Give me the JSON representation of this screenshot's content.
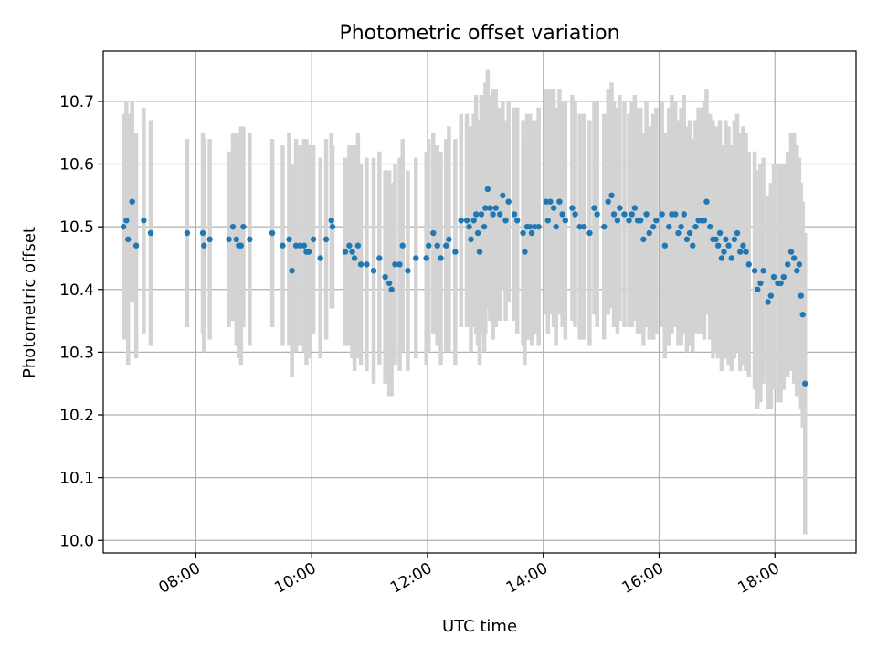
{
  "chart_data": {
    "type": "scatter",
    "title": "Photometric offset variation",
    "xlabel": "UTC time",
    "ylabel": "Photometric offset",
    "x_unit": "UTC hours",
    "xlim": [
      6.4,
      19.4
    ],
    "ylim": [
      9.98,
      10.78
    ],
    "grid": true,
    "x_ticks": [
      {
        "value": 8,
        "label": "08:00"
      },
      {
        "value": 10,
        "label": "10:00"
      },
      {
        "value": 12,
        "label": "12:00"
      },
      {
        "value": 14,
        "label": "14:00"
      },
      {
        "value": 16,
        "label": "16:00"
      },
      {
        "value": 18,
        "label": "18:00"
      }
    ],
    "y_ticks": [
      {
        "value": 10.0,
        "label": "10.0"
      },
      {
        "value": 10.1,
        "label": "10.1"
      },
      {
        "value": 10.2,
        "label": "10.2"
      },
      {
        "value": 10.3,
        "label": "10.3"
      },
      {
        "value": 10.4,
        "label": "10.4"
      },
      {
        "value": 10.5,
        "label": "10.5"
      },
      {
        "value": 10.6,
        "label": "10.6"
      },
      {
        "value": 10.7,
        "label": "10.7"
      }
    ],
    "colors": {
      "points": "#1f77b4",
      "error_bars": "#d3d3d3"
    },
    "points": [
      [
        6.75,
        10.5,
        0.18
      ],
      [
        6.8,
        10.51,
        0.19
      ],
      [
        6.83,
        10.48,
        0.2
      ],
      [
        6.9,
        10.54,
        0.16
      ],
      [
        6.97,
        10.47,
        0.18
      ],
      [
        7.1,
        10.51,
        0.18
      ],
      [
        7.22,
        10.49,
        0.18
      ],
      [
        7.85,
        10.49,
        0.15
      ],
      [
        8.12,
        10.49,
        0.16
      ],
      [
        8.14,
        10.47,
        0.17
      ],
      [
        8.24,
        10.48,
        0.16
      ],
      [
        8.57,
        10.48,
        0.14
      ],
      [
        8.64,
        10.5,
        0.15
      ],
      [
        8.7,
        10.48,
        0.17
      ],
      [
        8.74,
        10.47,
        0.18
      ],
      [
        8.78,
        10.47,
        0.19
      ],
      [
        8.82,
        10.5,
        0.16
      ],
      [
        8.93,
        10.48,
        0.17
      ],
      [
        9.32,
        10.49,
        0.15
      ],
      [
        9.5,
        10.47,
        0.16
      ],
      [
        9.61,
        10.48,
        0.17
      ],
      [
        9.66,
        10.43,
        0.17
      ],
      [
        9.73,
        10.47,
        0.17
      ],
      [
        9.8,
        10.47,
        0.16
      ],
      [
        9.87,
        10.47,
        0.17
      ],
      [
        9.91,
        10.46,
        0.18
      ],
      [
        9.95,
        10.46,
        0.17
      ],
      [
        10.03,
        10.48,
        0.15
      ],
      [
        10.15,
        10.45,
        0.16
      ],
      [
        10.25,
        10.48,
        0.16
      ],
      [
        10.34,
        10.51,
        0.14
      ],
      [
        10.36,
        10.5,
        0.13
      ],
      [
        10.58,
        10.46,
        0.15
      ],
      [
        10.65,
        10.47,
        0.16
      ],
      [
        10.7,
        10.46,
        0.17
      ],
      [
        10.74,
        10.45,
        0.18
      ],
      [
        10.8,
        10.47,
        0.18
      ],
      [
        10.85,
        10.44,
        0.16
      ],
      [
        10.95,
        10.44,
        0.17
      ],
      [
        11.07,
        10.43,
        0.18
      ],
      [
        11.17,
        10.45,
        0.17
      ],
      [
        11.27,
        10.42,
        0.17
      ],
      [
        11.34,
        10.41,
        0.18
      ],
      [
        11.38,
        10.4,
        0.17
      ],
      [
        11.44,
        10.44,
        0.16
      ],
      [
        11.52,
        10.44,
        0.17
      ],
      [
        11.57,
        10.47,
        0.17
      ],
      [
        11.66,
        10.43,
        0.16
      ],
      [
        11.8,
        10.45,
        0.16
      ],
      [
        11.98,
        10.45,
        0.17
      ],
      [
        12.02,
        10.47,
        0.17
      ],
      [
        12.1,
        10.49,
        0.16
      ],
      [
        12.17,
        10.47,
        0.16
      ],
      [
        12.23,
        10.45,
        0.17
      ],
      [
        12.32,
        10.47,
        0.17
      ],
      [
        12.37,
        10.48,
        0.18
      ],
      [
        12.48,
        10.46,
        0.18
      ],
      [
        12.58,
        10.51,
        0.17
      ],
      [
        12.68,
        10.51,
        0.17
      ],
      [
        12.72,
        10.5,
        0.16
      ],
      [
        12.75,
        10.48,
        0.18
      ],
      [
        12.8,
        10.51,
        0.17
      ],
      [
        12.84,
        10.52,
        0.19
      ],
      [
        12.87,
        10.49,
        0.18
      ],
      [
        12.9,
        10.46,
        0.18
      ],
      [
        12.93,
        10.52,
        0.19
      ],
      [
        12.98,
        10.5,
        0.2
      ],
      [
        13.0,
        10.53,
        0.2
      ],
      [
        13.04,
        10.56,
        0.19
      ],
      [
        13.08,
        10.53,
        0.18
      ],
      [
        13.13,
        10.52,
        0.2
      ],
      [
        13.18,
        10.53,
        0.19
      ],
      [
        13.25,
        10.52,
        0.17
      ],
      [
        13.3,
        10.55,
        0.15
      ],
      [
        13.35,
        10.51,
        0.16
      ],
      [
        13.4,
        10.54,
        0.16
      ],
      [
        13.5,
        10.52,
        0.17
      ],
      [
        13.55,
        10.51,
        0.18
      ],
      [
        13.65,
        10.49,
        0.18
      ],
      [
        13.68,
        10.46,
        0.18
      ],
      [
        13.72,
        10.5,
        0.18
      ],
      [
        13.77,
        10.5,
        0.18
      ],
      [
        13.8,
        10.49,
        0.18
      ],
      [
        13.85,
        10.5,
        0.17
      ],
      [
        13.92,
        10.5,
        0.19
      ],
      [
        14.05,
        10.54,
        0.18
      ],
      [
        14.08,
        10.51,
        0.18
      ],
      [
        14.12,
        10.54,
        0.18
      ],
      [
        14.18,
        10.53,
        0.19
      ],
      [
        14.22,
        10.5,
        0.19
      ],
      [
        14.28,
        10.54,
        0.18
      ],
      [
        14.33,
        10.52,
        0.18
      ],
      [
        14.38,
        10.51,
        0.19
      ],
      [
        14.5,
        10.53,
        0.18
      ],
      [
        14.55,
        10.52,
        0.18
      ],
      [
        14.63,
        10.5,
        0.18
      ],
      [
        14.7,
        10.5,
        0.18
      ],
      [
        14.8,
        10.49,
        0.18
      ],
      [
        14.88,
        10.53,
        0.17
      ],
      [
        14.93,
        10.52,
        0.18
      ],
      [
        15.05,
        10.5,
        0.18
      ],
      [
        15.12,
        10.54,
        0.18
      ],
      [
        15.18,
        10.55,
        0.18
      ],
      [
        15.22,
        10.52,
        0.18
      ],
      [
        15.28,
        10.51,
        0.18
      ],
      [
        15.32,
        10.53,
        0.18
      ],
      [
        15.4,
        10.52,
        0.18
      ],
      [
        15.48,
        10.51,
        0.17
      ],
      [
        15.53,
        10.52,
        0.18
      ],
      [
        15.58,
        10.53,
        0.18
      ],
      [
        15.63,
        10.51,
        0.18
      ],
      [
        15.68,
        10.51,
        0.18
      ],
      [
        15.73,
        10.48,
        0.17
      ],
      [
        15.78,
        10.52,
        0.18
      ],
      [
        15.83,
        10.49,
        0.17
      ],
      [
        15.9,
        10.5,
        0.18
      ],
      [
        15.95,
        10.51,
        0.18
      ],
      [
        16.05,
        10.52,
        0.18
      ],
      [
        16.1,
        10.47,
        0.18
      ],
      [
        16.17,
        10.5,
        0.19
      ],
      [
        16.22,
        10.52,
        0.19
      ],
      [
        16.28,
        10.52,
        0.18
      ],
      [
        16.33,
        10.49,
        0.18
      ],
      [
        16.38,
        10.5,
        0.19
      ],
      [
        16.43,
        10.52,
        0.19
      ],
      [
        16.48,
        10.48,
        0.18
      ],
      [
        16.53,
        10.49,
        0.18
      ],
      [
        16.58,
        10.47,
        0.17
      ],
      [
        16.63,
        10.5,
        0.17
      ],
      [
        16.68,
        10.51,
        0.18
      ],
      [
        16.73,
        10.51,
        0.18
      ],
      [
        16.78,
        10.51,
        0.19
      ],
      [
        16.82,
        10.54,
        0.18
      ],
      [
        16.88,
        10.5,
        0.18
      ],
      [
        16.93,
        10.48,
        0.19
      ],
      [
        16.98,
        10.48,
        0.18
      ],
      [
        17.02,
        10.47,
        0.18
      ],
      [
        17.05,
        10.49,
        0.18
      ],
      [
        17.08,
        10.45,
        0.18
      ],
      [
        17.12,
        10.46,
        0.17
      ],
      [
        17.15,
        10.48,
        0.19
      ],
      [
        17.2,
        10.47,
        0.19
      ],
      [
        17.25,
        10.45,
        0.18
      ],
      [
        17.3,
        10.48,
        0.19
      ],
      [
        17.35,
        10.49,
        0.19
      ],
      [
        17.4,
        10.46,
        0.19
      ],
      [
        17.45,
        10.47,
        0.19
      ],
      [
        17.5,
        10.46,
        0.19
      ],
      [
        17.55,
        10.44,
        0.18
      ],
      [
        17.65,
        10.43,
        0.19
      ],
      [
        17.7,
        10.4,
        0.19
      ],
      [
        17.75,
        10.41,
        0.19
      ],
      [
        17.8,
        10.43,
        0.18
      ],
      [
        17.88,
        10.38,
        0.17
      ],
      [
        17.93,
        10.39,
        0.18
      ],
      [
        17.98,
        10.42,
        0.18
      ],
      [
        18.05,
        10.41,
        0.19
      ],
      [
        18.1,
        10.41,
        0.19
      ],
      [
        18.15,
        10.42,
        0.18
      ],
      [
        18.22,
        10.44,
        0.18
      ],
      [
        18.28,
        10.46,
        0.19
      ],
      [
        18.33,
        10.45,
        0.2
      ],
      [
        18.38,
        10.43,
        0.2
      ],
      [
        18.42,
        10.44,
        0.17
      ],
      [
        18.45,
        10.39,
        0.18
      ],
      [
        18.48,
        10.36,
        0.18
      ],
      [
        18.52,
        10.25,
        0.24
      ]
    ]
  }
}
